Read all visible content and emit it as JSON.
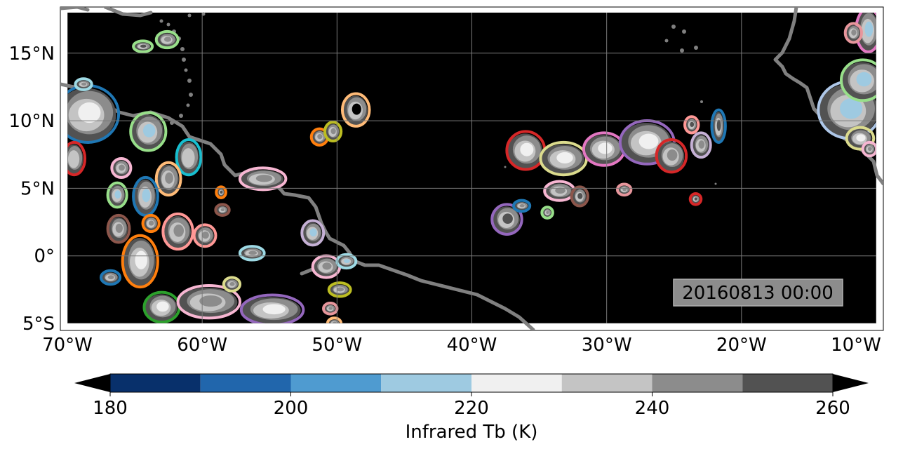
{
  "map": {
    "timestamp": "20160813 00:00",
    "background_color": "#000000",
    "coastline_color": "#808080",
    "gridline_color": "#7a7a7a",
    "lon_ticks": [
      {
        "lon": -70,
        "label": "70°W"
      },
      {
        "lon": -60,
        "label": "60°W"
      },
      {
        "lon": -50,
        "label": "50°W"
      },
      {
        "lon": -40,
        "label": "40°W"
      },
      {
        "lon": -30,
        "label": "30°W"
      },
      {
        "lon": -20,
        "label": "20°W"
      },
      {
        "lon": -10,
        "label": "10°W"
      }
    ],
    "lat_ticks": [
      {
        "lat": 15,
        "label": "15°N"
      },
      {
        "lat": 10,
        "label": "10°N"
      },
      {
        "lat": 5,
        "label": "5°N"
      },
      {
        "lat": 0,
        "label": "0°"
      },
      {
        "lat": -5,
        "label": "5°S"
      }
    ],
    "lon_range": [
      -70,
      -10
    ],
    "lat_range": [
      -5,
      18
    ]
  },
  "colorbar": {
    "label": "Infrared Tb (K)",
    "levels": [
      180,
      190,
      200,
      210,
      220,
      230,
      240,
      250,
      260
    ],
    "colors": [
      "#08306b",
      "#2166ac",
      "#4f9bd0",
      "#9ecae1",
      "#f0f0f0",
      "#c4c4c4",
      "#8c8c8c",
      "#525252"
    ],
    "under_color": "#000000",
    "over_color": "#000000",
    "tick_labels": [
      "180",
      "200",
      "220",
      "240",
      "260"
    ],
    "tick_values": [
      180,
      200,
      220,
      240,
      260
    ]
  },
  "clouds": [
    {
      "lon": -68.5,
      "lat": 10.5,
      "rx": 2.2,
      "ry": 2.0,
      "outline": "#1f77b4",
      "core": "#f0f0f0"
    },
    {
      "lon": -69.5,
      "lat": 7.2,
      "rx": 0.7,
      "ry": 1.1,
      "outline": "#d62728",
      "core": "#c4c4c4"
    },
    {
      "lon": -68.8,
      "lat": 12.7,
      "rx": 0.5,
      "ry": 0.3,
      "outline": "#9edae5",
      "core": "#8c8c8c"
    },
    {
      "lon": -64.0,
      "lat": 9.2,
      "rx": 1.2,
      "ry": 1.3,
      "outline": "#98df8a",
      "core": "#9ecae1"
    },
    {
      "lon": -61.0,
      "lat": 7.3,
      "rx": 0.8,
      "ry": 1.2,
      "outline": "#17becf",
      "core": "#c4c4c4"
    },
    {
      "lon": -62.5,
      "lat": 5.7,
      "rx": 0.8,
      "ry": 1.1,
      "outline": "#ffbb78",
      "core": "#8c8c8c"
    },
    {
      "lon": -66.0,
      "lat": 6.5,
      "rx": 0.6,
      "ry": 0.6,
      "outline": "#f7b6d2",
      "core": "#8c8c8c"
    },
    {
      "lon": -64.2,
      "lat": 4.4,
      "rx": 0.8,
      "ry": 1.3,
      "outline": "#1f77b4",
      "core": "#9ecae1"
    },
    {
      "lon": -66.3,
      "lat": 4.5,
      "rx": 0.6,
      "ry": 0.8,
      "outline": "#98df8a",
      "core": "#9ecae1"
    },
    {
      "lon": -66.2,
      "lat": 2.0,
      "rx": 0.7,
      "ry": 0.9,
      "outline": "#8c564b",
      "core": "#8c8c8c"
    },
    {
      "lon": -61.8,
      "lat": 1.8,
      "rx": 1.0,
      "ry": 1.2,
      "outline": "#ff9896",
      "core": "#8c8c8c"
    },
    {
      "lon": -59.8,
      "lat": 1.5,
      "rx": 0.7,
      "ry": 0.7,
      "outline": "#ff9896",
      "core": "#8c8c8c"
    },
    {
      "lon": -64.6,
      "lat": -0.4,
      "rx": 1.2,
      "ry": 1.8,
      "outline": "#ff7f0e",
      "core": "#f0f0f0"
    },
    {
      "lon": -63.8,
      "lat": 2.4,
      "rx": 0.5,
      "ry": 0.5,
      "outline": "#ff7f0e",
      "core": "#8c8c8c"
    },
    {
      "lon": -66.8,
      "lat": -1.6,
      "rx": 0.6,
      "ry": 0.4,
      "outline": "#1f77b4",
      "core": "#8c8c8c"
    },
    {
      "lon": -63.0,
      "lat": -3.8,
      "rx": 1.2,
      "ry": 1.0,
      "outline": "#2ca02c",
      "core": "#f0f0f0"
    },
    {
      "lon": -59.5,
      "lat": -3.4,
      "rx": 2.2,
      "ry": 1.1,
      "outline": "#f7b6d2",
      "core": "#8c8c8c"
    },
    {
      "lon": -54.8,
      "lat": -4.0,
      "rx": 2.2,
      "ry": 1.0,
      "outline": "#9467bd",
      "core": "#f0f0f0"
    },
    {
      "lon": -57.8,
      "lat": -2.1,
      "rx": 0.5,
      "ry": 0.4,
      "outline": "#dbdb8d",
      "core": "#8c8c8c"
    },
    {
      "lon": -62.6,
      "lat": 16.0,
      "rx": 0.7,
      "ry": 0.5,
      "outline": "#98df8a",
      "core": "#8c8c8c"
    },
    {
      "lon": -64.4,
      "lat": 15.5,
      "rx": 0.6,
      "ry": 0.3,
      "outline": "#98df8a",
      "core": "#525252"
    },
    {
      "lon": -55.5,
      "lat": 5.7,
      "rx": 1.6,
      "ry": 0.7,
      "outline": "#f7b6d2",
      "core": "#8c8c8c"
    },
    {
      "lon": -51.8,
      "lat": 1.7,
      "rx": 0.7,
      "ry": 0.8,
      "outline": "#c5b0d5",
      "core": "#9ecae1"
    },
    {
      "lon": -56.3,
      "lat": 0.2,
      "rx": 0.8,
      "ry": 0.4,
      "outline": "#9edae5",
      "core": "#8c8c8c"
    },
    {
      "lon": -58.6,
      "lat": 4.7,
      "rx": 0.25,
      "ry": 0.3,
      "outline": "#ff7f0e",
      "core": "#525252"
    },
    {
      "lon": -58.5,
      "lat": 3.4,
      "rx": 0.4,
      "ry": 0.3,
      "outline": "#8c564b",
      "core": "#8c8c8c"
    },
    {
      "lon": -51.3,
      "lat": 8.8,
      "rx": 0.5,
      "ry": 0.5,
      "outline": "#ff7f0e",
      "core": "#8c8c8c"
    },
    {
      "lon": -50.3,
      "lat": 9.2,
      "rx": 0.5,
      "ry": 0.6,
      "outline": "#bcbd22",
      "core": "#8c8c8c"
    },
    {
      "lon": -48.6,
      "lat": 10.8,
      "rx": 0.9,
      "ry": 1.1,
      "outline": "#ffbb78",
      "core": "#000000"
    },
    {
      "lon": -50.8,
      "lat": -0.8,
      "rx": 0.9,
      "ry": 0.7,
      "outline": "#f7b6d2",
      "core": "#8c8c8c"
    },
    {
      "lon": -49.3,
      "lat": -0.4,
      "rx": 0.6,
      "ry": 0.4,
      "outline": "#9edae5",
      "core": "#9ecae1"
    },
    {
      "lon": -49.8,
      "lat": -2.5,
      "rx": 0.7,
      "ry": 0.4,
      "outline": "#bcbd22",
      "core": "#8c8c8c"
    },
    {
      "lon": -50.5,
      "lat": -3.9,
      "rx": 0.4,
      "ry": 0.3,
      "outline": "#e7969c",
      "core": "#8c8c8c"
    },
    {
      "lon": -50.2,
      "lat": -5.0,
      "rx": 0.4,
      "ry": 0.3,
      "outline": "#ffbb78",
      "core": "#8c8c8c"
    },
    {
      "lon": -36.0,
      "lat": 7.8,
      "rx": 1.3,
      "ry": 1.3,
      "outline": "#d62728",
      "core": "#f0f0f0"
    },
    {
      "lon": -33.2,
      "lat": 7.2,
      "rx": 1.6,
      "ry": 1.1,
      "outline": "#dbdb8d",
      "core": "#f0f0f0"
    },
    {
      "lon": -30.2,
      "lat": 7.9,
      "rx": 1.4,
      "ry": 1.1,
      "outline": "#e377c2",
      "core": "#f0f0f0"
    },
    {
      "lon": -27.0,
      "lat": 8.4,
      "rx": 1.9,
      "ry": 1.5,
      "outline": "#9467bd",
      "core": "#f0f0f0"
    },
    {
      "lon": -25.2,
      "lat": 7.4,
      "rx": 1.0,
      "ry": 1.1,
      "outline": "#d62728",
      "core": "#8c8c8c"
    },
    {
      "lon": -23.0,
      "lat": 8.2,
      "rx": 0.6,
      "ry": 0.8,
      "outline": "#c5b0d5",
      "core": "#8c8c8c"
    },
    {
      "lon": -23.7,
      "lat": 9.7,
      "rx": 0.4,
      "ry": 0.5,
      "outline": "#ff9896",
      "core": "#525252"
    },
    {
      "lon": -21.7,
      "lat": 9.6,
      "rx": 0.4,
      "ry": 1.1,
      "outline": "#1f77b4",
      "core": "#525252"
    },
    {
      "lon": -33.5,
      "lat": 4.8,
      "rx": 1.0,
      "ry": 0.6,
      "outline": "#f7b6d2",
      "core": "#8c8c8c"
    },
    {
      "lon": -32.0,
      "lat": 4.4,
      "rx": 0.5,
      "ry": 0.6,
      "outline": "#8c564b",
      "core": "#525252"
    },
    {
      "lon": -28.7,
      "lat": 4.9,
      "rx": 0.4,
      "ry": 0.3,
      "outline": "#e7969c",
      "core": "#8c8c8c"
    },
    {
      "lon": -23.4,
      "lat": 4.2,
      "rx": 0.3,
      "ry": 0.3,
      "outline": "#d62728",
      "core": "#525252"
    },
    {
      "lon": -37.4,
      "lat": 2.7,
      "rx": 1.0,
      "ry": 1.0,
      "outline": "#9467bd",
      "core": "#525252"
    },
    {
      "lon": -36.3,
      "lat": 3.7,
      "rx": 0.5,
      "ry": 0.3,
      "outline": "#1f77b4",
      "core": "#8c8c8c"
    },
    {
      "lon": -34.4,
      "lat": 3.2,
      "rx": 0.3,
      "ry": 0.3,
      "outline": "#98df8a",
      "core": "#8c8c8c"
    },
    {
      "lon": -12.0,
      "lat": 10.8,
      "rx": 2.2,
      "ry": 2.0,
      "outline": "#aec7e8",
      "core": "#9ecae1"
    },
    {
      "lon": -11.0,
      "lat": 13.0,
      "rx": 1.5,
      "ry": 1.4,
      "outline": "#98df8a",
      "core": "#9ecae1"
    },
    {
      "lon": -11.2,
      "lat": 8.7,
      "rx": 0.9,
      "ry": 0.7,
      "outline": "#dbdb8d",
      "core": "#f0f0f0"
    },
    {
      "lon": -10.6,
      "lat": 16.7,
      "rx": 0.8,
      "ry": 1.5,
      "outline": "#e377c2",
      "core": "#9ecae1"
    },
    {
      "lon": -11.7,
      "lat": 16.5,
      "rx": 0.5,
      "ry": 0.6,
      "outline": "#e7969c",
      "core": "#8c8c8c"
    },
    {
      "lon": -10.5,
      "lat": 7.9,
      "rx": 0.4,
      "ry": 0.4,
      "outline": "#f7b6d2",
      "core": "#8c8c8c"
    }
  ]
}
